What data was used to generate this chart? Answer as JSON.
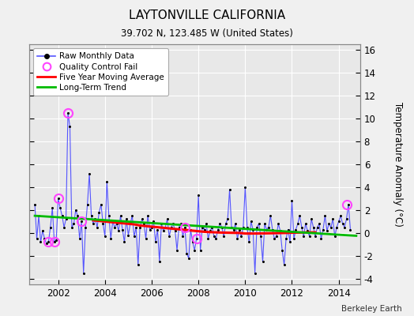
{
  "title": "LAYTONVILLE CALIFORNIA",
  "subtitle": "39.702 N, 123.485 W (United States)",
  "ylabel": "Temperature Anomaly (°C)",
  "credit": "Berkeley Earth",
  "xlim": [
    2000.75,
    2014.92
  ],
  "ylim": [
    -4.5,
    16.5
  ],
  "yticks": [
    -4,
    -2,
    0,
    2,
    4,
    6,
    8,
    10,
    12,
    14,
    16
  ],
  "xticks": [
    2002,
    2004,
    2006,
    2008,
    2010,
    2012,
    2014
  ],
  "plot_bg_color": "#e8e8e8",
  "fig_bg_color": "#f0f0f0",
  "raw_color": "#5555ff",
  "raw_dot_color": "#000000",
  "qc_color": "#ff44ff",
  "moving_avg_color": "#ff0000",
  "trend_color": "#00bb00",
  "grid_color": "#ffffff",
  "raw_monthly_times": [
    2001.0,
    2001.083,
    2001.167,
    2001.25,
    2001.333,
    2001.417,
    2001.5,
    2001.583,
    2001.667,
    2001.75,
    2001.833,
    2001.917,
    2002.0,
    2002.083,
    2002.167,
    2002.25,
    2002.333,
    2002.417,
    2002.5,
    2002.583,
    2002.667,
    2002.75,
    2002.833,
    2002.917,
    2003.0,
    2003.083,
    2003.167,
    2003.25,
    2003.333,
    2003.417,
    2003.5,
    2003.583,
    2003.667,
    2003.75,
    2003.833,
    2003.917,
    2004.0,
    2004.083,
    2004.167,
    2004.25,
    2004.333,
    2004.417,
    2004.5,
    2004.583,
    2004.667,
    2004.75,
    2004.833,
    2004.917,
    2005.0,
    2005.083,
    2005.167,
    2005.25,
    2005.333,
    2005.417,
    2005.5,
    2005.583,
    2005.667,
    2005.75,
    2005.833,
    2005.917,
    2006.0,
    2006.083,
    2006.167,
    2006.25,
    2006.333,
    2006.417,
    2006.5,
    2006.583,
    2006.667,
    2006.75,
    2006.833,
    2006.917,
    2007.0,
    2007.083,
    2007.167,
    2007.25,
    2007.333,
    2007.417,
    2007.5,
    2007.583,
    2007.667,
    2007.75,
    2007.833,
    2007.917,
    2008.0,
    2008.083,
    2008.167,
    2008.25,
    2008.333,
    2008.417,
    2008.5,
    2008.583,
    2008.667,
    2008.75,
    2008.833,
    2008.917,
    2009.0,
    2009.083,
    2009.167,
    2009.25,
    2009.333,
    2009.417,
    2009.5,
    2009.583,
    2009.667,
    2009.75,
    2009.833,
    2009.917,
    2010.0,
    2010.083,
    2010.167,
    2010.25,
    2010.333,
    2010.417,
    2010.5,
    2010.583,
    2010.667,
    2010.75,
    2010.833,
    2010.917,
    2011.0,
    2011.083,
    2011.167,
    2011.25,
    2011.333,
    2011.417,
    2011.5,
    2011.583,
    2011.667,
    2011.75,
    2011.833,
    2011.917,
    2012.0,
    2012.083,
    2012.167,
    2012.25,
    2012.333,
    2012.417,
    2012.5,
    2012.583,
    2012.667,
    2012.75,
    2012.833,
    2012.917,
    2013.0,
    2013.083,
    2013.167,
    2013.25,
    2013.333,
    2013.417,
    2013.5,
    2013.583,
    2013.667,
    2013.75,
    2013.833,
    2013.917,
    2014.0,
    2014.083,
    2014.167,
    2014.25,
    2014.333,
    2014.417,
    2014.5
  ],
  "raw_monthly_values": [
    2.5,
    -0.5,
    1.5,
    -0.8,
    0.2,
    -0.5,
    -0.9,
    -0.8,
    0.5,
    2.2,
    -0.8,
    -0.6,
    3.0,
    2.2,
    1.5,
    0.5,
    1.2,
    10.5,
    9.3,
    0.5,
    0.8,
    2.0,
    1.5,
    -0.5,
    1.0,
    -3.5,
    0.5,
    2.5,
    5.2,
    1.5,
    0.8,
    1.2,
    0.5,
    1.8,
    2.5,
    0.8,
    -0.3,
    4.5,
    1.5,
    -0.5,
    1.0,
    0.5,
    0.8,
    0.2,
    1.5,
    0.3,
    -0.8,
    1.2,
    -0.2,
    0.8,
    1.5,
    -0.3,
    0.5,
    -2.8,
    0.5,
    1.2,
    0.8,
    -0.5,
    1.5,
    0.3,
    0.5,
    1.0,
    -0.8,
    0.3,
    -2.5,
    0.8,
    0.2,
    0.5,
    1.2,
    -0.3,
    0.5,
    0.8,
    0.2,
    -1.5,
    0.5,
    0.8,
    -0.3,
    0.5,
    -1.8,
    -2.2,
    0.3,
    -0.8,
    -1.5,
    -0.5,
    3.3,
    -1.5,
    0.5,
    0.3,
    0.8,
    -0.5,
    0.2,
    0.5,
    -0.3,
    -0.5,
    0.3,
    0.8,
    0.5,
    -0.3,
    0.8,
    1.2,
    3.8,
    0.5,
    0.3,
    0.8,
    -0.5,
    0.3,
    -0.3,
    0.5,
    4.0,
    0.5,
    -0.8,
    1.0,
    0.3,
    -3.5,
    0.5,
    0.8,
    -0.3,
    -2.5,
    0.8,
    0.3,
    0.5,
    1.5,
    0.3,
    -0.5,
    -0.3,
    0.8,
    0.2,
    -1.5,
    -2.8,
    -0.5,
    0.3,
    -0.8,
    2.8,
    -0.5,
    0.3,
    0.8,
    1.5,
    0.5,
    -0.3,
    0.8,
    0.2,
    -0.3,
    1.2,
    0.5,
    -0.3,
    0.5,
    0.8,
    -0.5,
    0.3,
    1.5,
    0.2,
    0.8,
    0.5,
    1.2,
    -0.3,
    0.5,
    1.0,
    1.5,
    0.8,
    0.5,
    1.2,
    2.5,
    0.3
  ],
  "qc_fail_points": [
    [
      2001.583,
      -0.8
    ],
    [
      2001.833,
      -0.8
    ],
    [
      2002.0,
      3.0
    ],
    [
      2002.417,
      10.5
    ],
    [
      2003.0,
      1.0
    ],
    [
      2007.417,
      0.5
    ],
    [
      2007.917,
      -0.5
    ],
    [
      2014.333,
      2.5
    ]
  ],
  "moving_avg_times": [
    2003.5,
    2003.75,
    2004.0,
    2004.25,
    2004.5,
    2004.75,
    2005.0,
    2005.25,
    2005.5,
    2005.75,
    2006.0,
    2006.25,
    2006.5,
    2006.75,
    2007.0,
    2007.25,
    2007.5,
    2007.75,
    2008.0,
    2008.25,
    2008.5,
    2008.75,
    2009.0,
    2009.25,
    2009.5,
    2009.75,
    2010.0,
    2010.25,
    2010.5,
    2010.75,
    2011.0,
    2011.25,
    2011.5,
    2011.75,
    2012.0,
    2012.25,
    2012.5,
    2012.75,
    2013.0
  ],
  "moving_avg_values": [
    1.1,
    1.05,
    1.0,
    0.95,
    0.9,
    0.85,
    0.8,
    0.75,
    0.65,
    0.6,
    0.55,
    0.5,
    0.45,
    0.4,
    0.35,
    0.3,
    0.25,
    0.2,
    0.15,
    0.1,
    0.07,
    0.05,
    0.03,
    0.02,
    0.01,
    0.0,
    -0.05,
    -0.05,
    -0.05,
    -0.04,
    -0.03,
    -0.02,
    -0.01,
    0.0,
    0.02,
    0.03,
    0.04,
    0.05,
    0.05
  ],
  "trend_times": [
    2001.0,
    2014.75
  ],
  "trend_values": [
    1.5,
    -0.25
  ]
}
